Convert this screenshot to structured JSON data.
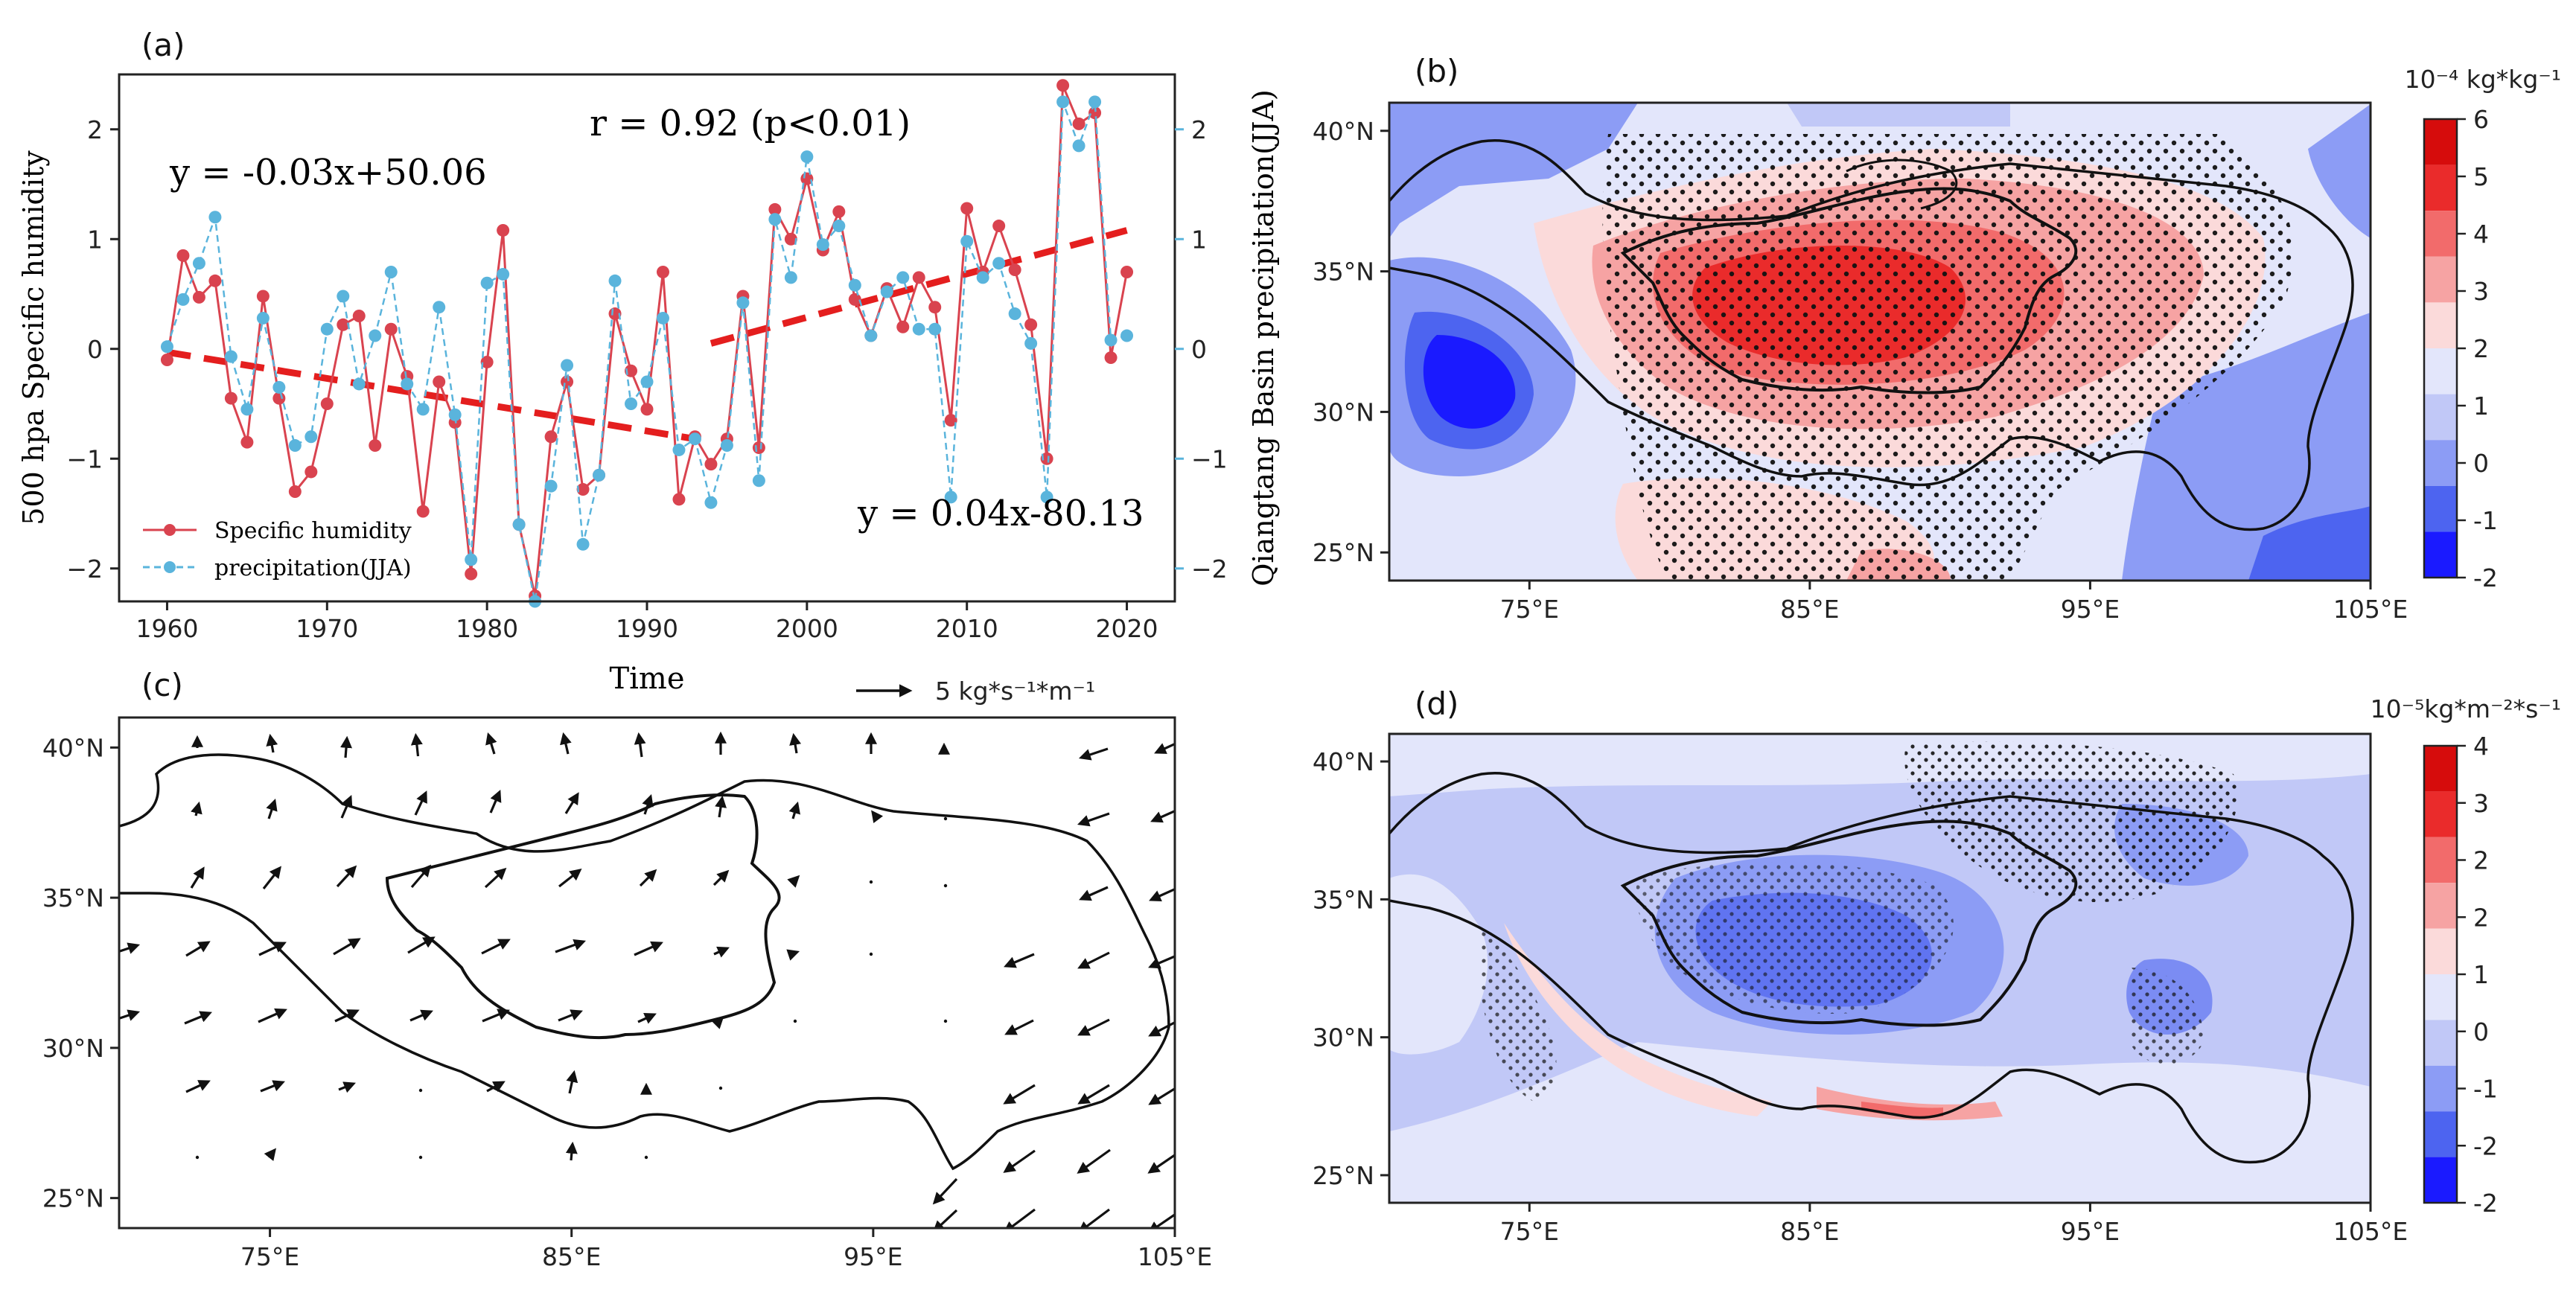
{
  "colors": {
    "humidity": "#d9434f",
    "precip": "#5ab4dc",
    "trend": "#e41e1e",
    "cb": [
      "#1a1aff",
      "#4d64f0",
      "#8c9cf5",
      "#c1c8f7",
      "#e3e6fb",
      "#fbdada",
      "#f6a3a3",
      "#f26b6b",
      "#ea2b2b",
      "#d60c0c"
    ],
    "cbd": [
      "#1a1aff",
      "#4d64f0",
      "#8c9cf5",
      "#c1c8f7",
      "#e3e6fb",
      "#fbdada",
      "#f6a3a3",
      "#f26b6b",
      "#ea2b2b",
      "#d60c0c"
    ]
  },
  "panel_labels": {
    "a": "(a)",
    "b": "(b)",
    "c": "(c)",
    "d": "(d)"
  },
  "map_axes": {
    "lon_ticks": [
      "75°E",
      "85°E",
      "95°E",
      "105°E"
    ],
    "lat_ticks": [
      "40°N",
      "35°N",
      "30°N",
      "25°N"
    ]
  },
  "chart_data": [
    {
      "id": "a",
      "type": "line",
      "title": "",
      "xlabel": "Time",
      "ylabel": "500 hpa Specific humidity",
      "ylabel_right": "Qiangtang Basin precipitation(JJA)",
      "xlim": [
        1957,
        2023
      ],
      "ylim": [
        -2.3,
        2.5
      ],
      "ylim_right": [
        -2.3,
        2.5
      ],
      "x_ticks": [
        1960,
        1970,
        1980,
        1990,
        2000,
        2010,
        2020
      ],
      "y_ticks": [
        "2",
        "1",
        "0",
        "−1",
        "−2"
      ],
      "y_ticks_right": [
        "2",
        "1",
        "0",
        "−1",
        "−2"
      ],
      "x": [
        1960,
        1961,
        1962,
        1963,
        1964,
        1965,
        1966,
        1967,
        1968,
        1969,
        1970,
        1971,
        1972,
        1973,
        1974,
        1975,
        1976,
        1977,
        1978,
        1979,
        1980,
        1981,
        1982,
        1983,
        1984,
        1985,
        1986,
        1987,
        1988,
        1989,
        1990,
        1991,
        1992,
        1993,
        1994,
        1995,
        1996,
        1997,
        1998,
        1999,
        2000,
        2001,
        2002,
        2003,
        2004,
        2005,
        2006,
        2007,
        2008,
        2009,
        2010,
        2011,
        2012,
        2013,
        2014,
        2015,
        2016,
        2017,
        2018,
        2019,
        2020
      ],
      "series": [
        {
          "name": "Specific humidity",
          "values": [
            -0.1,
            0.85,
            0.47,
            0.62,
            -0.45,
            -0.85,
            0.48,
            -0.45,
            -1.3,
            -1.12,
            -0.5,
            0.22,
            0.3,
            -0.88,
            0.18,
            -0.25,
            -1.48,
            -0.3,
            -0.67,
            -2.05,
            -0.12,
            1.08,
            -1.6,
            -2.25,
            -0.8,
            -0.3,
            -1.28,
            -1.15,
            0.32,
            -0.2,
            -0.55,
            0.7,
            -1.37,
            -0.8,
            -1.05,
            -0.82,
            0.48,
            -0.9,
            1.27,
            1.0,
            1.55,
            0.9,
            1.25,
            0.45,
            0.12,
            0.55,
            0.2,
            0.65,
            0.38,
            -0.65,
            1.28,
            0.7,
            1.12,
            0.72,
            0.22,
            -1.0,
            2.4,
            2.05,
            2.15,
            -0.08,
            0.7
          ]
        },
        {
          "name": "precipitation(JJA)",
          "values": [
            0.02,
            0.45,
            0.78,
            1.2,
            -0.07,
            -0.55,
            0.28,
            -0.35,
            -0.88,
            -0.8,
            0.18,
            0.48,
            -0.32,
            0.12,
            0.7,
            -0.32,
            -0.55,
            0.38,
            -0.6,
            -1.92,
            0.6,
            0.68,
            -1.6,
            -2.3,
            -1.25,
            -0.15,
            -1.78,
            -1.15,
            0.62,
            -0.5,
            -0.3,
            0.28,
            -0.92,
            -0.82,
            -1.4,
            -0.88,
            0.42,
            -1.2,
            1.18,
            0.65,
            1.75,
            0.95,
            1.12,
            0.58,
            0.12,
            0.52,
            0.65,
            0.18,
            0.18,
            -1.35,
            0.98,
            0.65,
            0.78,
            0.32,
            0.05,
            -1.35,
            2.25,
            1.85,
            2.25,
            0.08,
            0.12
          ]
        }
      ],
      "trends": [
        {
          "label": "y = -0.03x+50.06",
          "x_range": [
            1960,
            1993
          ],
          "y_range": [
            -0.03,
            -0.82
          ]
        },
        {
          "label": "y = 0.04x-80.13",
          "x_range": [
            1994,
            2020
          ],
          "y_range": [
            0.05,
            1.08
          ]
        }
      ],
      "annotation": "r = 0.92 (p<0.01)",
      "legend": [
        "Specific humidity",
        "precipitation(JJA)"
      ],
      "legend_position": "lower-left"
    },
    {
      "id": "b",
      "type": "heatmap",
      "colorbar_label": "10⁻⁴ kg*kg⁻¹",
      "colorbar_ticks": [
        "6",
        "5",
        "4",
        "3",
        "2",
        "1",
        "0",
        "-1",
        "-2"
      ],
      "xlim": [
        70,
        105
      ],
      "ylim": [
        24,
        41
      ],
      "description_values": "max ~5 over 85°E-88°E/34°N; min ~-2 near 73°E/31°N and 104°E/25°N"
    },
    {
      "id": "c",
      "type": "vector",
      "reference_vector": "5 kg*s⁻¹*m⁻¹",
      "xlim": [
        70,
        105
      ],
      "ylim": [
        24,
        41
      ]
    },
    {
      "id": "d",
      "type": "heatmap",
      "colorbar_label": "10⁻⁵kg*m⁻²*s⁻¹",
      "colorbar_ticks": [
        "4",
        "3",
        "2",
        "2",
        "1",
        "0",
        "-1",
        "-2",
        "-2"
      ],
      "xlim": [
        70,
        105
      ],
      "ylim": [
        24,
        41
      ]
    }
  ]
}
